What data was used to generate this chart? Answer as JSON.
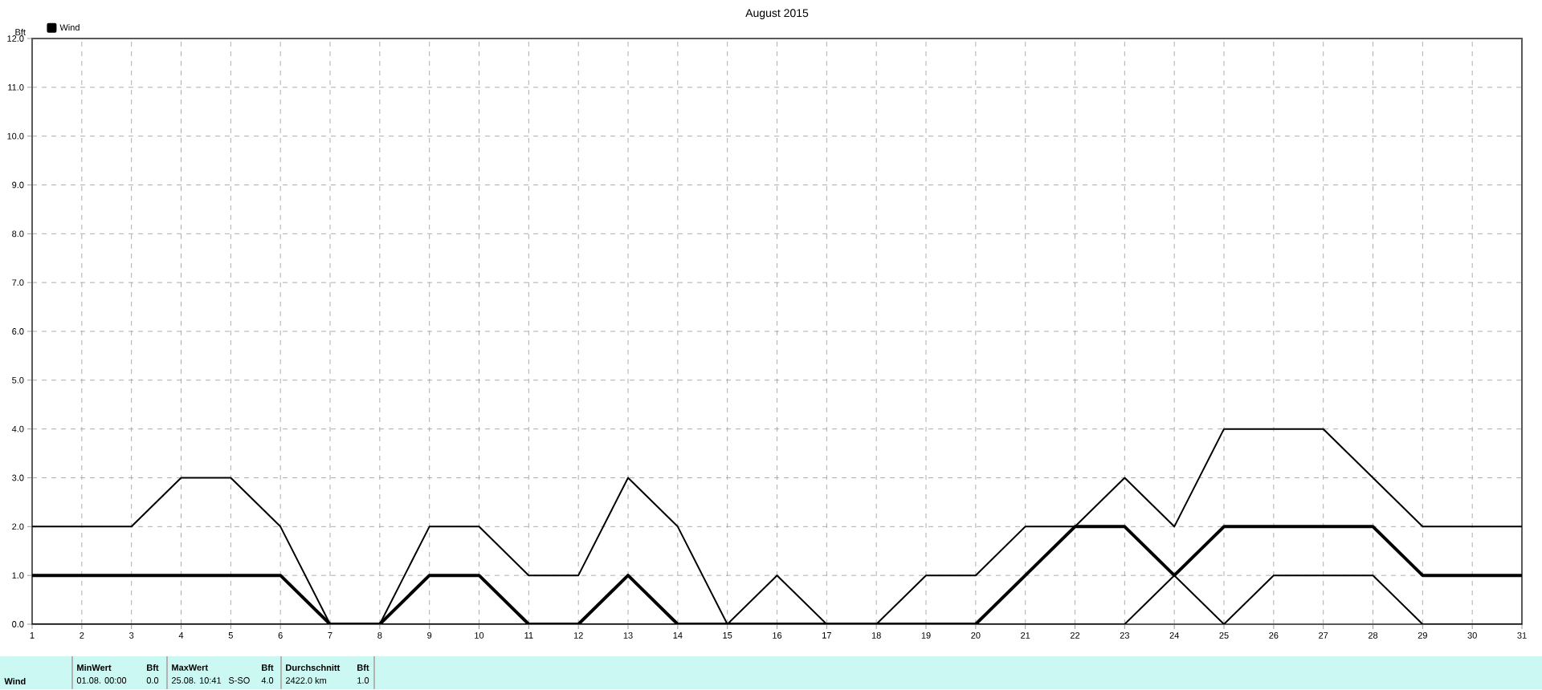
{
  "chart_data": {
    "type": "line",
    "title": "August 2015",
    "ylabel": "Bft",
    "x": [
      1,
      2,
      3,
      4,
      5,
      6,
      7,
      8,
      9,
      10,
      11,
      12,
      13,
      14,
      15,
      16,
      17,
      18,
      19,
      20,
      21,
      22,
      23,
      24,
      25,
      26,
      27,
      28,
      29,
      30,
      31
    ],
    "series": [
      {
        "color": "#000000",
        "values": [
          2,
          2,
          2,
          3,
          3,
          2,
          0,
          0,
          2,
          2,
          1,
          1,
          3,
          2,
          0,
          1,
          0,
          0,
          1,
          1,
          2,
          2,
          3,
          2,
          4,
          4,
          4,
          3,
          2,
          2,
          2
        ]
      },
      {
        "name": "Wind",
        "color": "#000000",
        "values": [
          1,
          1,
          1,
          1,
          1,
          1,
          0,
          0,
          1,
          1,
          0,
          0,
          1,
          0,
          0,
          0,
          0,
          0,
          0,
          0,
          1,
          2,
          2,
          1,
          2,
          2,
          2,
          2,
          1,
          1,
          1
        ]
      },
      {
        "color": "#000000",
        "values": [
          0,
          0,
          0,
          0,
          0,
          0,
          0,
          0,
          0,
          0,
          0,
          0,
          0,
          0,
          0,
          0,
          0,
          0,
          0,
          0,
          0,
          0,
          0,
          1,
          0,
          1,
          1,
          1,
          0,
          0,
          0
        ]
      }
    ],
    "xlim": [
      1,
      31
    ],
    "ylim": [
      0,
      12
    ],
    "xticks": [
      1,
      2,
      3,
      4,
      5,
      6,
      7,
      8,
      9,
      10,
      11,
      12,
      13,
      14,
      15,
      16,
      17,
      18,
      19,
      20,
      21,
      22,
      23,
      24,
      25,
      26,
      27,
      28,
      29,
      30,
      31
    ],
    "yticks": [
      {
        "value": 0,
        "label": "0.0"
      },
      {
        "value": 1,
        "label": "1.0"
      },
      {
        "value": 2,
        "label": "2.0"
      },
      {
        "value": 3,
        "label": "3.0"
      },
      {
        "value": 4,
        "label": "4.0"
      },
      {
        "value": 5,
        "label": "5.0"
      },
      {
        "value": 6,
        "label": "6.0"
      },
      {
        "value": 7,
        "label": "7.0"
      },
      {
        "value": 8,
        "label": "8.0"
      },
      {
        "value": 9,
        "label": "9.0"
      },
      {
        "value": 10,
        "label": "10.0"
      },
      {
        "value": 11,
        "label": "11.0"
      },
      {
        "value": 12,
        "label": "12.0"
      }
    ],
    "grid": true,
    "legend": "top left",
    "marker": "none",
    "line_style": "solid",
    "annotations": [
      "Wind",
      "MinWert",
      "Bft",
      "01.08.  00:00",
      "0.0",
      "MaxWert",
      "Bft",
      "25.08.  10:41",
      "S-SO",
      "4.0",
      "Durchschnitt",
      "Bft",
      "2422.0 km",
      "1.0"
    ]
  }
}
